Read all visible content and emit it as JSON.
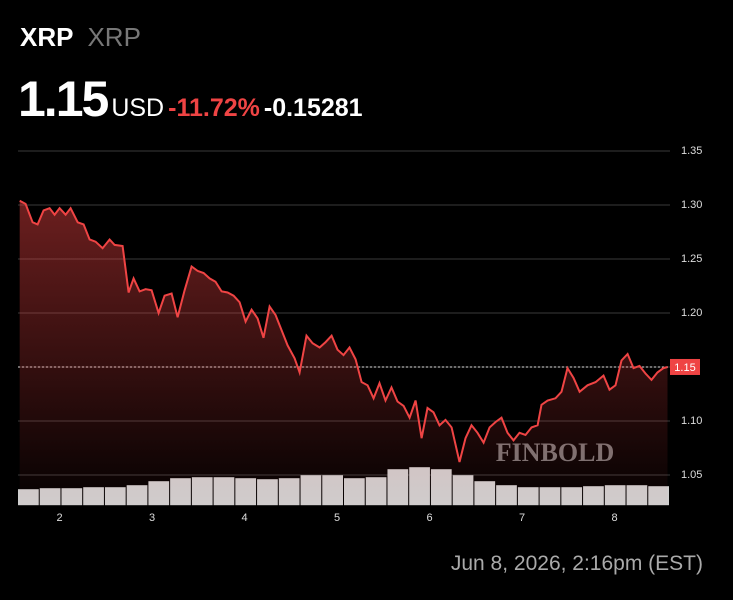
{
  "header": {
    "symbol": "XRP",
    "name": "XRP",
    "price": "1.15",
    "currency": "USD",
    "change_pct": "-11.72%",
    "change": "-0.15281"
  },
  "chart_data": {
    "type": "line",
    "watermark": "FINBOLD",
    "xlim": [
      1.55,
      8.6
    ],
    "xticks": [
      2,
      3,
      4,
      5,
      6,
      7,
      8
    ],
    "ylim": [
      1.022,
      1.37
    ],
    "yticks": [
      1.35,
      {
        "value": 1.3,
        "label": "1.30"
      },
      1.25,
      {
        "value": 1.2,
        "label": "1.20"
      },
      1.15,
      {
        "value": 1.1,
        "label": "1.10"
      },
      1.05
    ],
    "price_line": 1.15,
    "grid": true,
    "series": [
      {
        "name": "XRP",
        "color": "#ef4444",
        "x": [
          1.568,
          1.632,
          1.708,
          1.762,
          1.827,
          1.892,
          1.946,
          2.0,
          2.065,
          2.119,
          2.195,
          2.259,
          2.324,
          2.389,
          2.465,
          2.541,
          2.595,
          2.681,
          2.746,
          2.8,
          2.865,
          2.93,
          2.995,
          3.07,
          3.135,
          3.211,
          3.276,
          3.351,
          3.427,
          3.492,
          3.557,
          3.622,
          3.686,
          3.751,
          3.816,
          3.881,
          3.946,
          4.011,
          4.076,
          4.141,
          4.205,
          4.27,
          4.335,
          4.4,
          4.465,
          4.541,
          4.595,
          4.67,
          4.735,
          4.811,
          4.876,
          4.941,
          5.005,
          5.07,
          5.135,
          5.2,
          5.265,
          5.33,
          5.395,
          5.459,
          5.524,
          5.589,
          5.654,
          5.719,
          5.784,
          5.849,
          5.914,
          5.978,
          6.043,
          6.108,
          6.173,
          6.238,
          6.324,
          6.389,
          6.454,
          6.519,
          6.584,
          6.649,
          6.714,
          6.778,
          6.843,
          6.908,
          6.973,
          7.038,
          7.103,
          7.168,
          7.211,
          7.276,
          7.362,
          7.427,
          7.492,
          7.557,
          7.622,
          7.708,
          7.795,
          7.881,
          7.946,
          8.011,
          8.076,
          8.141,
          8.205,
          8.27,
          8.335,
          8.4,
          8.465,
          8.53,
          8.573
        ],
        "values": [
          1.304,
          1.301,
          1.284,
          1.282,
          1.295,
          1.297,
          1.291,
          1.297,
          1.291,
          1.297,
          1.284,
          1.282,
          1.268,
          1.266,
          1.26,
          1.268,
          1.263,
          1.262,
          1.219,
          1.232,
          1.22,
          1.222,
          1.221,
          1.2,
          1.216,
          1.218,
          1.196,
          1.221,
          1.243,
          1.239,
          1.237,
          1.232,
          1.229,
          1.22,
          1.219,
          1.216,
          1.21,
          1.192,
          1.203,
          1.195,
          1.177,
          1.206,
          1.198,
          1.184,
          1.17,
          1.158,
          1.145,
          1.179,
          1.172,
          1.168,
          1.173,
          1.179,
          1.166,
          1.161,
          1.168,
          1.157,
          1.136,
          1.133,
          1.121,
          1.135,
          1.119,
          1.131,
          1.118,
          1.114,
          1.103,
          1.119,
          1.084,
          1.112,
          1.108,
          1.096,
          1.101,
          1.094,
          1.062,
          1.084,
          1.096,
          1.089,
          1.08,
          1.094,
          1.099,
          1.103,
          1.089,
          1.082,
          1.089,
          1.087,
          1.094,
          1.096,
          1.115,
          1.119,
          1.121,
          1.127,
          1.149,
          1.14,
          1.127,
          1.133,
          1.136,
          1.142,
          1.129,
          1.133,
          1.156,
          1.162,
          1.149,
          1.151,
          1.144,
          1.138,
          1.145,
          1.149,
          1.15
        ]
      }
    ],
    "volume": [
      16,
      17,
      17,
      18,
      18,
      20,
      24,
      27,
      28,
      28,
      27,
      26,
      27,
      30,
      30,
      27,
      28,
      36,
      38,
      36,
      30,
      24,
      20,
      18,
      18,
      18,
      19,
      20,
      20,
      19
    ]
  },
  "footer": {
    "timestamp": "Jun 8, 2026, 2:16pm (EST)"
  }
}
